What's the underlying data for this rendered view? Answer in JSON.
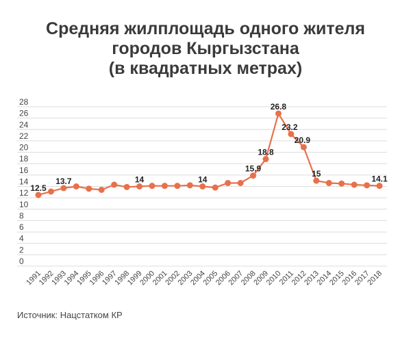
{
  "chart_data": {
    "type": "line",
    "title": [
      "Средняя жилплощадь одного жителя",
      "городов Кыргызстана",
      "(в квадратных метрах)"
    ],
    "xlabel": "",
    "ylabel": "",
    "ylim": [
      0,
      28
    ],
    "yticks": [
      0,
      2,
      4,
      6,
      8,
      10,
      12,
      14,
      16,
      18,
      20,
      22,
      24,
      26,
      28
    ],
    "grid": true,
    "categories": [
      "1991",
      "1992",
      "1993",
      "1994",
      "1995",
      "1996",
      "1997",
      "1998",
      "1999",
      "2000",
      "2001",
      "2002",
      "2003",
      "2004",
      "2005",
      "2006",
      "2007",
      "2008",
      "2009",
      "2010",
      "2011",
      "2012",
      "2013",
      "2014",
      "2015",
      "2016",
      "2017",
      "2018"
    ],
    "values": [
      12.5,
      13.1,
      13.7,
      14.0,
      13.6,
      13.4,
      14.3,
      13.9,
      14,
      14.1,
      14.1,
      14.1,
      14.2,
      14,
      13.8,
      14.6,
      14.6,
      15.9,
      18.8,
      26.8,
      23.2,
      20.9,
      15,
      14.6,
      14.5,
      14.3,
      14.2,
      14.1
    ],
    "labeled_points": {
      "1991": "12.5",
      "1993": "13.7",
      "1999": "14",
      "2004": "14",
      "2008": "15.9",
      "2009": "18.8",
      "2010": "26.8",
      "2011": "23.2",
      "2012": "20.9",
      "2013": "15",
      "2018": "14.1"
    },
    "line_color": "#e8704a"
  },
  "source": "Источник:  Нацстатком КР"
}
